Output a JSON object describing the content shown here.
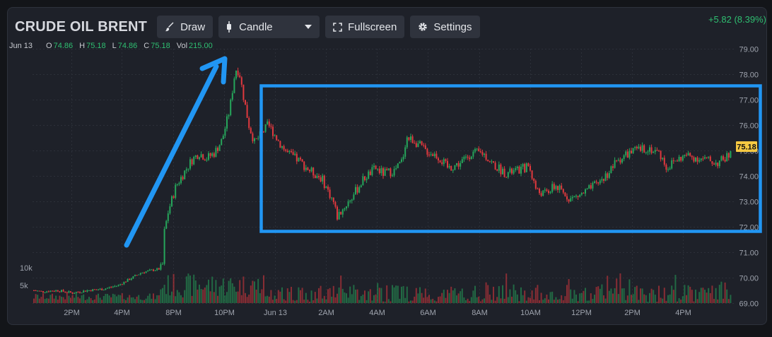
{
  "header": {
    "title": "CRUDE OIL BRENT",
    "draw_label": "Draw",
    "chart_type_label": "Candle",
    "fullscreen_label": "Fullscreen",
    "settings_label": "Settings",
    "change": "+5.82 (8.39%)"
  },
  "ohlc": {
    "date": "Jun 13",
    "o_key": "O",
    "o": "74.86",
    "h_key": "H",
    "h": "75.18",
    "l_key": "L",
    "l": "74.86",
    "c_key": "C",
    "c": "75.18",
    "vol_key": "Vol",
    "vol": "215.00"
  },
  "colors": {
    "up": "#26a65b",
    "down": "#e0393e",
    "annotation": "#2196f3",
    "price_tag": "#f5c842"
  },
  "chart_data": {
    "type": "candlestick",
    "x_ticks": [
      "2PM",
      "4PM",
      "8PM",
      "10PM",
      "Jun 13",
      "2AM",
      "4AM",
      "6AM",
      "8AM",
      "10AM",
      "12PM",
      "2PM",
      "4PM"
    ],
    "y_ticks": [
      "79.00",
      "78.00",
      "77.00",
      "76.00",
      "75.00",
      "74.00",
      "73.00",
      "72.00",
      "71.00",
      "70.00",
      "69.00"
    ],
    "ylim": [
      69,
      79
    ],
    "volume_ticks": [
      "10k",
      "5k"
    ],
    "last_price": "75.18",
    "grid": true,
    "close_path": [
      [
        0,
        69.5
      ],
      [
        0.02,
        69.45
      ],
      [
        0.06,
        69.5
      ],
      [
        0.1,
        69.4
      ],
      [
        0.14,
        69.5
      ],
      [
        0.18,
        69.55
      ],
      [
        0.22,
        69.7
      ],
      [
        0.25,
        69.95
      ],
      [
        0.28,
        70.2
      ],
      [
        0.31,
        70.3
      ],
      [
        0.33,
        70.35
      ],
      [
        0.335,
        70.45
      ],
      [
        0.34,
        71.8
      ],
      [
        0.35,
        72.6
      ],
      [
        0.37,
        73.6
      ],
      [
        0.39,
        74.1
      ],
      [
        0.41,
        74.6
      ],
      [
        0.43,
        74.9
      ],
      [
        0.45,
        74.7
      ],
      [
        0.47,
        74.9
      ],
      [
        0.49,
        75.4
      ],
      [
        0.51,
        76.6
      ],
      [
        0.525,
        78.2
      ],
      [
        0.535,
        78.1
      ],
      [
        0.545,
        77.2
      ],
      [
        0.56,
        76.0
      ],
      [
        0.575,
        75.3
      ],
      [
        0.59,
        75.6
      ],
      [
        0.61,
        76.0
      ],
      [
        0.62,
        75.8
      ],
      [
        0.64,
        75.3
      ],
      [
        0.66,
        74.9
      ],
      [
        0.69,
        74.6
      ],
      [
        0.72,
        74.2
      ],
      [
        0.75,
        73.9
      ],
      [
        0.78,
        73.0
      ],
      [
        0.79,
        72.4
      ],
      [
        0.81,
        72.8
      ],
      [
        0.83,
        73.2
      ],
      [
        0.86,
        73.9
      ],
      [
        0.89,
        74.3
      ],
      [
        0.91,
        74.1
      ],
      [
        0.94,
        74.2
      ],
      [
        0.96,
        74.6
      ],
      [
        0.97,
        75.5
      ],
      [
        0.99,
        75.4
      ],
      [
        1.02,
        75.0
      ],
      [
        1.05,
        74.8
      ],
      [
        1.08,
        74.3
      ],
      [
        1.11,
        74.5
      ],
      [
        1.14,
        74.9
      ],
      [
        1.17,
        74.9
      ],
      [
        1.2,
        74.4
      ],
      [
        1.23,
        74.1
      ],
      [
        1.26,
        74.2
      ],
      [
        1.29,
        74.4
      ],
      [
        1.31,
        73.4
      ],
      [
        1.33,
        73.3
      ],
      [
        1.36,
        73.6
      ],
      [
        1.38,
        73.3
      ],
      [
        1.4,
        73.1
      ],
      [
        1.43,
        73.3
      ],
      [
        1.46,
        73.6
      ],
      [
        1.49,
        74.0
      ],
      [
        1.52,
        74.6
      ],
      [
        1.55,
        74.9
      ],
      [
        1.57,
        75.0
      ],
      [
        1.6,
        75.1
      ],
      [
        1.63,
        74.9
      ],
      [
        1.65,
        74.3
      ],
      [
        1.67,
        74.6
      ],
      [
        1.7,
        74.8
      ],
      [
        1.73,
        74.7
      ],
      [
        1.76,
        74.6
      ],
      [
        1.78,
        74.5
      ],
      [
        1.8,
        74.7
      ],
      [
        1.82,
        74.9
      ]
    ]
  }
}
